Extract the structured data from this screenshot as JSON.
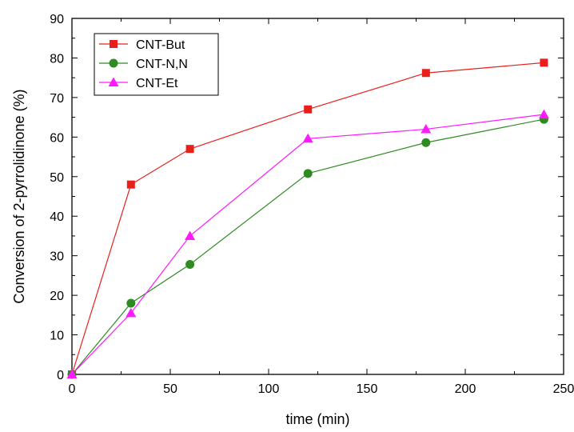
{
  "chart_data": {
    "type": "line",
    "xlabel": "time (min)",
    "ylabel": "Conversion of 2-pyrrolidinone (%)",
    "xlim": [
      0,
      250
    ],
    "ylim": [
      0,
      90
    ],
    "x_ticks": [
      0,
      50,
      100,
      150,
      200,
      250
    ],
    "y_ticks": [
      0,
      10,
      20,
      30,
      40,
      50,
      60,
      70,
      80,
      90
    ],
    "grid": false,
    "legend_position": "top-left",
    "series": [
      {
        "name": "CNT-But",
        "color": "#e8201c",
        "marker": "square",
        "x": [
          0,
          30,
          60,
          120,
          180,
          240
        ],
        "y": [
          0,
          48,
          57,
          67,
          76.2,
          78.8
        ]
      },
      {
        "name": "CNT-N,N",
        "color": "#2e8b22",
        "marker": "circle",
        "x": [
          0,
          30,
          60,
          120,
          180,
          240
        ],
        "y": [
          0,
          18,
          27.8,
          50.8,
          58.6,
          64.5
        ]
      },
      {
        "name": "CNT-Et",
        "color": "#ff19ff",
        "marker": "triangle",
        "x": [
          0,
          30,
          60,
          120,
          180,
          240
        ],
        "y": [
          0,
          15.5,
          35,
          59.6,
          62,
          65.7
        ]
      }
    ]
  }
}
